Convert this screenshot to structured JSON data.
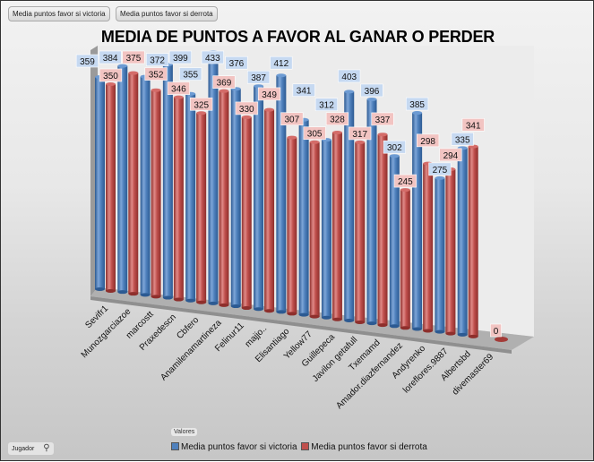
{
  "filter_buttons": [
    "Media puntos favor si victoria",
    "Media puntos favor si derrota"
  ],
  "axis_field_button": {
    "label": "Jugador",
    "icon": "filter-icon"
  },
  "values_label": "Valores",
  "colors": {
    "victoria": "#4f81bd",
    "derrota": "#c0504d",
    "victoria_label_bg": "#c6d9f1",
    "derrota_label_bg": "#f2c4c2"
  },
  "chart_data": {
    "type": "bar",
    "subtype": "3d-clustered-cylinder",
    "title": "MEDIA DE PUNTOS A FAVOR AL GANAR O PERDER",
    "xlabel": "",
    "ylabel": "",
    "ylim": [
      0,
      450
    ],
    "grid": false,
    "legend_position": "bottom",
    "categories": [
      "Sevifr1",
      "Munozgarciazoe",
      "marcostt",
      "Praxedescn",
      "Cbfero",
      "Anamilenamartineza",
      "Felinur11",
      "majjo..",
      "Elisantiago",
      "Yellow77",
      "Guillepeca",
      "Javilon getafull",
      "Txemamd",
      "Amador.diazfernandez",
      "Andyrenko",
      "loreflores.9887",
      "Albertsbd",
      "divemaster69"
    ],
    "series": [
      {
        "name": "Media puntos favor si victoria",
        "values": [
          359,
          384,
          372,
          399,
          355,
          433,
          376,
          387,
          412,
          341,
          312,
          403,
          396,
          302,
          385,
          275,
          335,
          null
        ]
      },
      {
        "name": "Media puntos favor si derrota",
        "values": [
          350,
          375,
          352,
          346,
          325,
          369,
          330,
          349,
          307,
          305,
          328,
          317,
          337,
          245,
          298,
          294,
          341,
          0
        ]
      }
    ]
  }
}
